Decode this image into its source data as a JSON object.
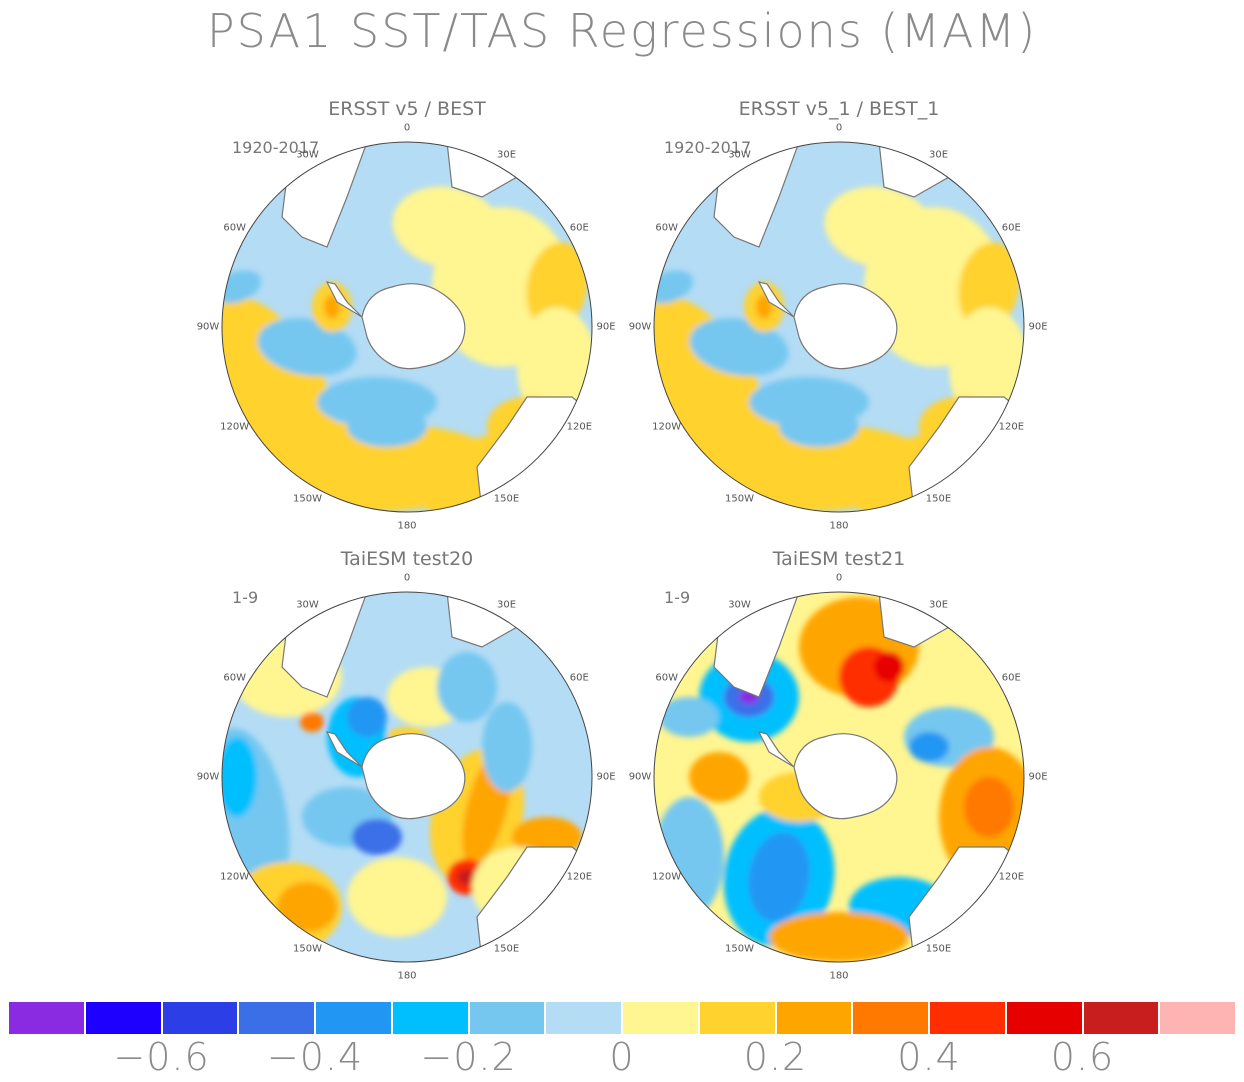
{
  "title": "PSA1 SST/TAS Regressions (MAM)",
  "colors": {
    "land": "#ffffff",
    "coast": "#777777"
  },
  "panels": [
    {
      "id": "ersst-best",
      "title": "ERSST v5 / BEST",
      "period": "1920-2017",
      "pattern": "obs"
    },
    {
      "id": "ersst1-best1",
      "title": "ERSST v5_1 / BEST_1",
      "period": "1920-2017",
      "pattern": "obs"
    },
    {
      "id": "taiesm-test20",
      "title": "TaiESM test20",
      "period": "1-9",
      "pattern": "model20"
    },
    {
      "id": "taiesm-test21",
      "title": "TaiESM test21",
      "period": "1-9",
      "pattern": "model21"
    }
  ],
  "lon_labels": [
    "0",
    "30E",
    "60E",
    "90E",
    "120E",
    "150E",
    "180",
    "150W",
    "120W",
    "90W",
    "60W",
    "30W"
  ],
  "colorbar": {
    "colors": [
      "#8a2be2",
      "#1e00ff",
      "#2c3fe6",
      "#3a6fe8",
      "#2196f3",
      "#00bfff",
      "#75c7f0",
      "#b4dcf5",
      "#fff591",
      "#ffd22d",
      "#ffa500",
      "#ff7800",
      "#ff2d00",
      "#e60000",
      "#c81e1e",
      "#ffb4b4"
    ],
    "labels": [
      "-0.6",
      "-0.4",
      "-0.2",
      "0",
      "0.2",
      "0.4",
      "0.6"
    ]
  }
}
